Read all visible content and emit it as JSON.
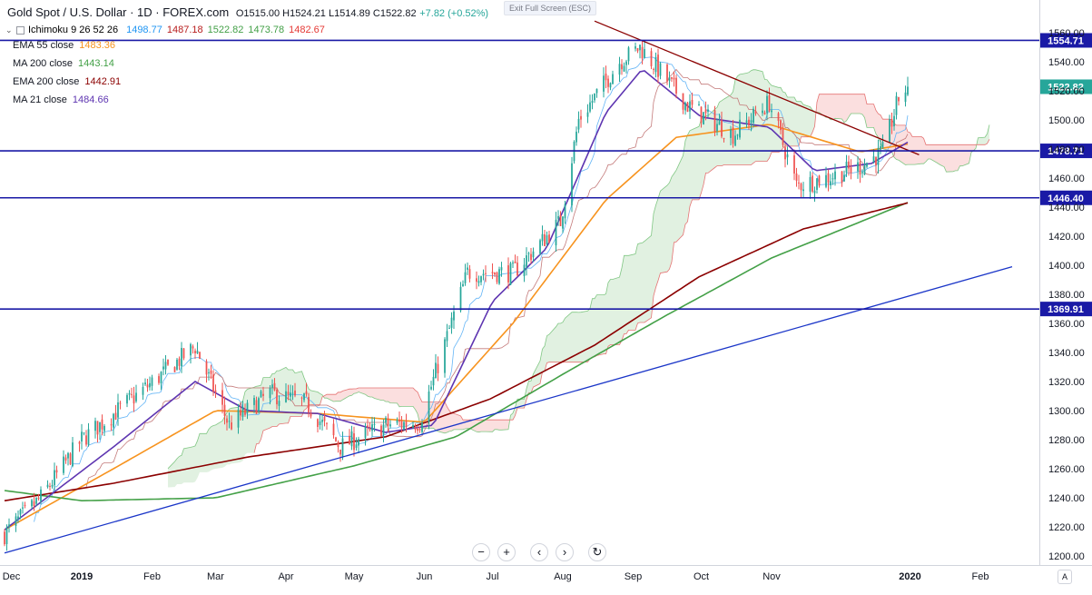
{
  "header": {
    "symbol": "Gold Spot / U.S. Dollar · 1D · FOREX.com",
    "ohlc": "O1515.00 H1524.21 L1514.89 C1522.82",
    "change": "+7.82 (+0.52%)",
    "exit_fullscreen": "Exit Full Screen (ESC)"
  },
  "ichimoku": {
    "label": "Ichimoku 9 26 52 26",
    "values": [
      {
        "text": "1498.77",
        "color": "#2196f3"
      },
      {
        "text": "1487.18",
        "color": "#b71c1c"
      },
      {
        "text": "1522.82",
        "color": "#43a047"
      },
      {
        "text": "1473.78",
        "color": "#43a047"
      },
      {
        "text": "1482.67",
        "color": "#e53935"
      }
    ]
  },
  "indicators": [
    {
      "label": "EMA 55 close",
      "value": "1483.36",
      "color": "#f7931e"
    },
    {
      "label": "MA 200 close",
      "value": "1443.14",
      "color": "#43a047"
    },
    {
      "label": "EMA 200 close",
      "value": "1442.91",
      "color": "#8b0000"
    },
    {
      "label": "MA 21 close",
      "value": "1484.66",
      "color": "#5e35b1"
    }
  ],
  "toolbar": {
    "zoom_out": "−",
    "zoom_in": "+",
    "scroll_left": "‹",
    "scroll_right": "›",
    "reset": "↻",
    "auto": "A"
  },
  "colors": {
    "up": "#26a69a",
    "down": "#ef5350",
    "level": "#1a1aa6",
    "trend_down": "#8b0000",
    "trend_up": "#1a35c8",
    "cloud_up": "#c8e6c9",
    "cloud_down": "#f8c5c5"
  },
  "chart_data": {
    "type": "candlestick",
    "title": "Gold Spot / U.S. Dollar · 1D · FOREX.com",
    "xlabel": "",
    "ylabel": "",
    "ylim": [
      1195,
      1570
    ],
    "x_ticks": [
      "Dec",
      "2019",
      "Feb",
      "Mar",
      "Apr",
      "May",
      "Jun",
      "Jul",
      "Aug",
      "Sep",
      "Oct",
      "Nov",
      "2020",
      "Feb"
    ],
    "y_ticks": [
      1200,
      1220,
      1240,
      1260,
      1280,
      1300,
      1320,
      1340,
      1360,
      1380,
      1400,
      1420,
      1440,
      1460,
      1480,
      1500,
      1520,
      1540,
      1560
    ],
    "levels": [
      1554.71,
      1478.71,
      1446.4,
      1369.91
    ],
    "last_price": 1522.82,
    "close_path": [
      {
        "date": "2018-11-28",
        "close": 1215
      },
      {
        "date": "2018-12-14",
        "close": 1240
      },
      {
        "date": "2019-01-01",
        "close": 1280
      },
      {
        "date": "2019-01-31",
        "close": 1318
      },
      {
        "date": "2019-02-20",
        "close": 1344
      },
      {
        "date": "2019-03-07",
        "close": 1290
      },
      {
        "date": "2019-03-25",
        "close": 1312
      },
      {
        "date": "2019-04-10",
        "close": 1305
      },
      {
        "date": "2019-04-25",
        "close": 1275
      },
      {
        "date": "2019-05-15",
        "close": 1290
      },
      {
        "date": "2019-05-30",
        "close": 1292
      },
      {
        "date": "2019-06-20",
        "close": 1395
      },
      {
        "date": "2019-07-10",
        "close": 1395
      },
      {
        "date": "2019-07-31",
        "close": 1430
      },
      {
        "date": "2019-08-08",
        "close": 1500
      },
      {
        "date": "2019-08-26",
        "close": 1540
      },
      {
        "date": "2019-09-04",
        "close": 1550
      },
      {
        "date": "2019-09-25",
        "close": 1510
      },
      {
        "date": "2019-10-15",
        "close": 1490
      },
      {
        "date": "2019-10-31",
        "close": 1512
      },
      {
        "date": "2019-11-12",
        "close": 1455
      },
      {
        "date": "2019-11-25",
        "close": 1460
      },
      {
        "date": "2019-12-10",
        "close": 1468
      },
      {
        "date": "2019-12-20",
        "close": 1478
      },
      {
        "date": "2019-12-27",
        "close": 1515
      },
      {
        "date": "2019-12-31",
        "close": 1522.82
      }
    ],
    "series": [
      {
        "name": "EMA 55 close",
        "points": [
          {
            "date": "2018-11-28",
            "v": 1218
          },
          {
            "date": "2019-01-15",
            "v": 1260
          },
          {
            "date": "2019-03-01",
            "v": 1300
          },
          {
            "date": "2019-04-15",
            "v": 1298
          },
          {
            "date": "2019-06-01",
            "v": 1292
          },
          {
            "date": "2019-07-10",
            "v": 1360
          },
          {
            "date": "2019-08-20",
            "v": 1445
          },
          {
            "date": "2019-09-20",
            "v": 1488
          },
          {
            "date": "2019-10-31",
            "v": 1497
          },
          {
            "date": "2019-12-10",
            "v": 1478
          },
          {
            "date": "2019-12-31",
            "v": 1483.36
          }
        ]
      },
      {
        "name": "MA 200 close",
        "points": [
          {
            "date": "2018-11-28",
            "v": 1245
          },
          {
            "date": "2019-01-01",
            "v": 1238
          },
          {
            "date": "2019-03-01",
            "v": 1240
          },
          {
            "date": "2019-05-01",
            "v": 1262
          },
          {
            "date": "2019-06-15",
            "v": 1282
          },
          {
            "date": "2019-08-01",
            "v": 1325
          },
          {
            "date": "2019-09-15",
            "v": 1365
          },
          {
            "date": "2019-11-01",
            "v": 1405
          },
          {
            "date": "2019-12-31",
            "v": 1443.14
          }
        ]
      },
      {
        "name": "EMA 200 close",
        "points": [
          {
            "date": "2018-11-28",
            "v": 1238
          },
          {
            "date": "2019-01-15",
            "v": 1250
          },
          {
            "date": "2019-03-15",
            "v": 1268
          },
          {
            "date": "2019-05-15",
            "v": 1282
          },
          {
            "date": "2019-06-30",
            "v": 1308
          },
          {
            "date": "2019-08-15",
            "v": 1345
          },
          {
            "date": "2019-09-30",
            "v": 1392
          },
          {
            "date": "2019-11-15",
            "v": 1425
          },
          {
            "date": "2019-12-31",
            "v": 1442.91
          }
        ]
      },
      {
        "name": "MA 21 close",
        "points": [
          {
            "date": "2018-11-28",
            "v": 1218
          },
          {
            "date": "2019-01-15",
            "v": 1275
          },
          {
            "date": "2019-02-20",
            "v": 1320
          },
          {
            "date": "2019-03-15",
            "v": 1300
          },
          {
            "date": "2019-04-15",
            "v": 1298
          },
          {
            "date": "2019-05-15",
            "v": 1285
          },
          {
            "date": "2019-06-05",
            "v": 1290
          },
          {
            "date": "2019-07-01",
            "v": 1375
          },
          {
            "date": "2019-07-25",
            "v": 1412
          },
          {
            "date": "2019-08-20",
            "v": 1505
          },
          {
            "date": "2019-09-05",
            "v": 1535
          },
          {
            "date": "2019-10-01",
            "v": 1502
          },
          {
            "date": "2019-10-31",
            "v": 1495
          },
          {
            "date": "2019-11-20",
            "v": 1465
          },
          {
            "date": "2019-12-15",
            "v": 1470
          },
          {
            "date": "2019-12-31",
            "v": 1484.66
          }
        ]
      }
    ],
    "trendlines": [
      {
        "name": "uptrend",
        "from": {
          "date": "2018-11-28",
          "v": 1202
        },
        "to": {
          "date": "2020-02-15",
          "v": 1399
        }
      },
      {
        "name": "downtrend",
        "from": {
          "date": "2019-08-15",
          "v": 1568
        },
        "to": {
          "date": "2020-01-05",
          "v": 1476
        }
      }
    ],
    "legend_position": "top-left",
    "grid": false
  }
}
